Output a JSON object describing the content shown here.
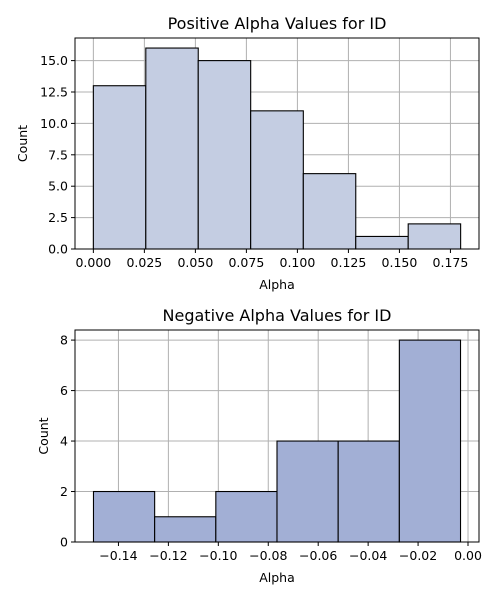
{
  "chart_data": [
    {
      "type": "bar",
      "title": "Positive Alpha Values for ID",
      "xlabel": "Alpha",
      "ylabel": "Count",
      "bin_edges": [
        0.0,
        0.0257,
        0.0514,
        0.0771,
        0.1029,
        0.1286,
        0.1543,
        0.18
      ],
      "values": [
        13,
        16,
        15,
        11,
        6,
        1,
        2
      ],
      "xlim": [
        -0.009,
        0.189
      ],
      "ylim": [
        0,
        16.8
      ],
      "xticks": [
        0.0,
        0.025,
        0.05,
        0.075,
        0.1,
        0.125,
        0.15,
        0.175
      ],
      "xtick_labels": [
        "0.000",
        "0.025",
        "0.050",
        "0.075",
        "0.100",
        "0.125",
        "0.150",
        "0.175"
      ],
      "yticks": [
        0,
        2.5,
        5,
        7.5,
        10,
        12.5,
        15
      ],
      "ytick_labels": [
        "0.0",
        "2.5",
        "5.0",
        "7.5",
        "10.0",
        "12.5",
        "15.0"
      ],
      "grid": true,
      "bar_color": "#c4cde2"
    },
    {
      "type": "bar",
      "title": "Negative Alpha Values for ID",
      "xlabel": "Alpha",
      "ylabel": "Count",
      "bin_edges": [
        -0.15,
        -0.1255,
        -0.101,
        -0.0765,
        -0.052,
        -0.0275,
        -0.003
      ],
      "values": [
        2,
        1,
        2,
        4,
        4,
        8
      ],
      "xlim": [
        -0.1574,
        0.0044
      ],
      "ylim": [
        0,
        8.4
      ],
      "xticks": [
        -0.14,
        -0.12,
        -0.1,
        -0.08,
        -0.06,
        -0.04,
        -0.02,
        0.0
      ],
      "xtick_labels": [
        "−0.14",
        "−0.12",
        "−0.10",
        "−0.08",
        "−0.06",
        "−0.04",
        "−0.02",
        "0.00"
      ],
      "yticks": [
        0,
        2,
        4,
        6,
        8
      ],
      "ytick_labels": [
        "0",
        "2",
        "4",
        "6",
        "8"
      ],
      "grid": true,
      "bar_color": "#a2afd5"
    }
  ]
}
